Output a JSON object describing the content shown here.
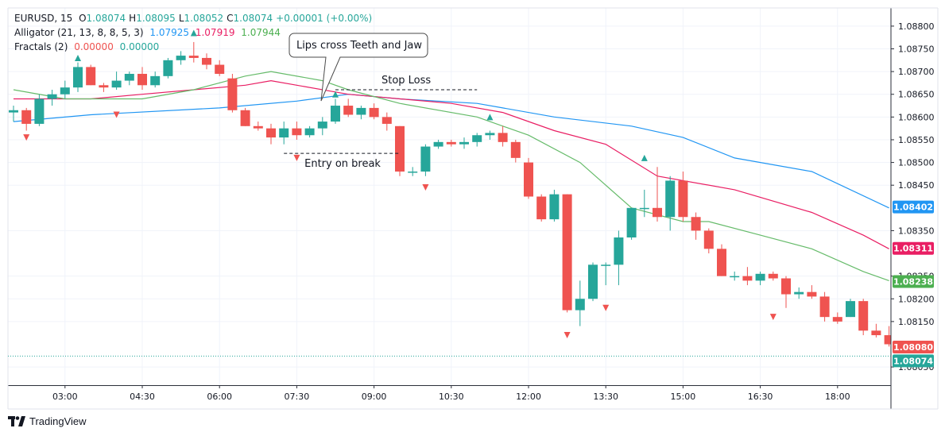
{
  "legend": {
    "line1": {
      "symbol": "EURUSD, 15",
      "open_label": "O",
      "open": "1.08074",
      "high_label": "H",
      "high": "1.08095",
      "low_label": "L",
      "low": "1.08052",
      "close_label": "C",
      "close": "1.08074",
      "change": "+0.00001 (+0.00%)"
    },
    "line2": {
      "name": "Alligator (21, 13, 8, 8, 5, 3)",
      "jaw": "1.07925",
      "teeth": "1.07919",
      "lips": "1.07944"
    },
    "line3": {
      "name": "Fractals (2)",
      "v1": "0.00000",
      "v2": "0.00000"
    }
  },
  "brand": "TradingView",
  "colors": {
    "up": "#26a69a",
    "down": "#ef5350",
    "jaw": "#2196f3",
    "teeth": "#e91e63",
    "lips": "#66bb6a"
  },
  "chart_data": {
    "type": "candlestick",
    "symbol": "EURUSD",
    "timeframe": "15",
    "ylim": [
      1.0801,
      1.0884
    ],
    "y_ticks": [
      "1.08800",
      "1.08750",
      "1.08700",
      "1.08650",
      "1.08600",
      "1.08550",
      "1.08500",
      "1.08450",
      "1.08350",
      "1.08250",
      "1.08200",
      "1.08150",
      "1.08050"
    ],
    "x_ticks": [
      "03:00",
      "04:30",
      "06:00",
      "07:30",
      "09:00",
      "10:30",
      "12:00",
      "13:30",
      "15:00",
      "16:30",
      "18:00"
    ],
    "x_tick_index": [
      4,
      10,
      16,
      22,
      28,
      34,
      40,
      46,
      52,
      58,
      64
    ],
    "candles": [
      [
        1.0861,
        1.08625,
        1.0859,
        1.08615
      ],
      [
        1.08615,
        1.0862,
        1.0857,
        1.08585
      ],
      [
        1.08585,
        1.0865,
        1.0858,
        1.0864
      ],
      [
        1.0864,
        1.0866,
        1.08625,
        1.0865
      ],
      [
        1.0865,
        1.0868,
        1.0864,
        1.08665
      ],
      [
        1.08665,
        1.0872,
        1.08655,
        1.0871
      ],
      [
        1.0871,
        1.08715,
        1.0867,
        1.0867
      ],
      [
        1.0867,
        1.08675,
        1.08655,
        1.08665
      ],
      [
        1.08665,
        1.087,
        1.0866,
        1.0868
      ],
      [
        1.0868,
        1.087,
        1.0867,
        1.08695
      ],
      [
        1.08695,
        1.0871,
        1.0866,
        1.0867
      ],
      [
        1.0867,
        1.087,
        1.08665,
        1.0869
      ],
      [
        1.0869,
        1.0873,
        1.08685,
        1.08725
      ],
      [
        1.08725,
        1.08745,
        1.08715,
        1.08735
      ],
      [
        1.08735,
        1.08765,
        1.0872,
        1.0873
      ],
      [
        1.0873,
        1.0874,
        1.08705,
        1.08715
      ],
      [
        1.08715,
        1.08725,
        1.0869,
        1.08695
      ],
      [
        1.08685,
        1.08695,
        1.0861,
        1.08615
      ],
      [
        1.08615,
        1.0862,
        1.0858,
        1.0858
      ],
      [
        1.0858,
        1.0859,
        1.0857,
        1.08575
      ],
      [
        1.08575,
        1.08585,
        1.0854,
        1.08555
      ],
      [
        1.08555,
        1.0859,
        1.0854,
        1.08575
      ],
      [
        1.08575,
        1.0859,
        1.0855,
        1.0856
      ],
      [
        1.0856,
        1.0858,
        1.08555,
        1.08575
      ],
      [
        1.08575,
        1.086,
        1.0856,
        1.0859
      ],
      [
        1.0859,
        1.0864,
        1.08585,
        1.08625
      ],
      [
        1.08625,
        1.0864,
        1.086,
        1.08605
      ],
      [
        1.08605,
        1.08625,
        1.08595,
        1.0862
      ],
      [
        1.0862,
        1.0863,
        1.08595,
        1.086
      ],
      [
        1.086,
        1.0861,
        1.0857,
        1.08585
      ],
      [
        1.0858,
        1.0858,
        1.0847,
        1.0848
      ],
      [
        1.0848,
        1.0849,
        1.0847,
        1.0848
      ],
      [
        1.0848,
        1.0854,
        1.0847,
        1.08535
      ],
      [
        1.08535,
        1.0855,
        1.0853,
        1.08545
      ],
      [
        1.08545,
        1.0855,
        1.08535,
        1.0854
      ],
      [
        1.0854,
        1.08555,
        1.0853,
        1.08545
      ],
      [
        1.08545,
        1.08565,
        1.08535,
        1.0856
      ],
      [
        1.0856,
        1.0857,
        1.0855,
        1.08565
      ],
      [
        1.08565,
        1.0858,
        1.08535,
        1.08545
      ],
      [
        1.08545,
        1.0855,
        1.085,
        1.0851
      ],
      [
        1.085,
        1.0851,
        1.0842,
        1.08425
      ],
      [
        1.08425,
        1.0843,
        1.0837,
        1.08375
      ],
      [
        1.08375,
        1.0844,
        1.0837,
        1.0843
      ],
      [
        1.0843,
        1.0843,
        1.0817,
        1.08175
      ],
      [
        1.08175,
        1.0824,
        1.0814,
        1.082
      ],
      [
        1.082,
        1.0828,
        1.08195,
        1.08275
      ],
      [
        1.08275,
        1.0828,
        1.0823,
        1.08275
      ],
      [
        1.08275,
        1.0835,
        1.0823,
        1.08335
      ],
      [
        1.08335,
        1.084,
        1.0833,
        1.084
      ],
      [
        1.084,
        1.0844,
        1.0838,
        1.084
      ],
      [
        1.084,
        1.0849,
        1.0837,
        1.0838
      ],
      [
        1.0838,
        1.0847,
        1.0835,
        1.0846
      ],
      [
        1.0846,
        1.0848,
        1.0837,
        1.0838
      ],
      [
        1.0838,
        1.0839,
        1.0833,
        1.0835
      ],
      [
        1.0835,
        1.08355,
        1.083,
        1.0831
      ],
      [
        1.0831,
        1.0832,
        1.0825,
        1.0825
      ],
      [
        1.0825,
        1.0826,
        1.0824,
        1.0825
      ],
      [
        1.0825,
        1.0827,
        1.0823,
        1.0824
      ],
      [
        1.0824,
        1.0826,
        1.0823,
        1.08255
      ],
      [
        1.08255,
        1.0826,
        1.0824,
        1.08245
      ],
      [
        1.08245,
        1.0825,
        1.0818,
        1.0821
      ],
      [
        1.0821,
        1.08225,
        1.082,
        1.08215
      ],
      [
        1.08215,
        1.0823,
        1.082,
        1.08205
      ],
      [
        1.08205,
        1.08215,
        1.0815,
        1.0816
      ],
      [
        1.0816,
        1.0817,
        1.08145,
        1.0815
      ],
      [
        1.0816,
        1.082,
        1.0816,
        1.08195
      ],
      [
        1.08195,
        1.082,
        1.0812,
        1.0813
      ],
      [
        1.0813,
        1.08145,
        1.08115,
        1.0812
      ],
      [
        1.0812,
        1.0814,
        1.08095,
        1.081
      ],
      [
        1.08095,
        1.081,
        1.08075,
        1.0808
      ]
    ],
    "jaw": [
      [
        0,
        1.0859
      ],
      [
        6,
        1.08605
      ],
      [
        16,
        1.0862
      ],
      [
        22,
        1.08635
      ],
      [
        26,
        1.0865
      ],
      [
        30,
        1.0864
      ],
      [
        36,
        1.0863
      ],
      [
        38,
        1.0862
      ],
      [
        42,
        1.086
      ],
      [
        48,
        1.0858
      ],
      [
        52,
        1.08555
      ],
      [
        56,
        1.0851
      ],
      [
        62,
        1.0848
      ],
      [
        68,
        1.084
      ]
    ],
    "teeth": [
      [
        0,
        1.0864
      ],
      [
        6,
        1.0864
      ],
      [
        10,
        1.0865
      ],
      [
        14,
        1.0866
      ],
      [
        18,
        1.0867
      ],
      [
        20,
        1.0868
      ],
      [
        26,
        1.0865
      ],
      [
        34,
        1.0863
      ],
      [
        38,
        1.0861
      ],
      [
        42,
        1.0857
      ],
      [
        46,
        1.0854
      ],
      [
        50,
        1.0847
      ],
      [
        56,
        1.0844
      ],
      [
        62,
        1.0839
      ],
      [
        66,
        1.0834
      ],
      [
        68,
        1.0831
      ]
    ],
    "lips": [
      [
        0,
        1.0866
      ],
      [
        4,
        1.0864
      ],
      [
        10,
        1.0864
      ],
      [
        14,
        1.0866
      ],
      [
        18,
        1.0869
      ],
      [
        20,
        1.087
      ],
      [
        24,
        1.0868
      ],
      [
        26,
        1.0866
      ],
      [
        30,
        1.0863
      ],
      [
        36,
        1.086
      ],
      [
        40,
        1.0856
      ],
      [
        44,
        1.085
      ],
      [
        46,
        1.0845
      ],
      [
        48,
        1.084
      ],
      [
        52,
        1.0837
      ],
      [
        54,
        1.0837
      ],
      [
        58,
        1.0834
      ],
      [
        62,
        1.0831
      ],
      [
        66,
        1.0826
      ],
      [
        68,
        1.0824
      ]
    ],
    "fractals_up": [
      [
        5,
        1.0873
      ],
      [
        14,
        1.08785
      ],
      [
        25,
        1.0865
      ],
      [
        37,
        1.086
      ],
      [
        49,
        1.0851
      ]
    ],
    "fractals_down": [
      [
        1,
        1.08555
      ],
      [
        8,
        1.08605
      ],
      [
        22,
        1.0851
      ],
      [
        32,
        1.08445
      ],
      [
        43,
        1.0812
      ],
      [
        46,
        1.0818
      ],
      [
        59,
        1.0816
      ]
    ],
    "price_labels": [
      {
        "value": 1.08402,
        "text": "1.08402",
        "color": "#2196f3"
      },
      {
        "value": 1.08311,
        "text": "1.08311",
        "color": "#e91e63"
      },
      {
        "value": 1.08238,
        "text": "1.08238",
        "color": "#4caf50"
      },
      {
        "value": 1.0808,
        "text": "1.08080",
        "color": "#ef5350"
      },
      {
        "value": 1.08074,
        "text": "1.08074",
        "color": "#26a69a"
      }
    ],
    "current_price": 1.08074,
    "annotations": {
      "callout": "Lips cross Teeth and Jaw",
      "stop_loss": {
        "label": "Stop Loss",
        "price": 1.0866,
        "from_index": 25,
        "to_index": 36
      },
      "entry": {
        "label": "Entry on break",
        "price": 1.0852,
        "from_index": 21,
        "to_index": 30
      }
    }
  }
}
